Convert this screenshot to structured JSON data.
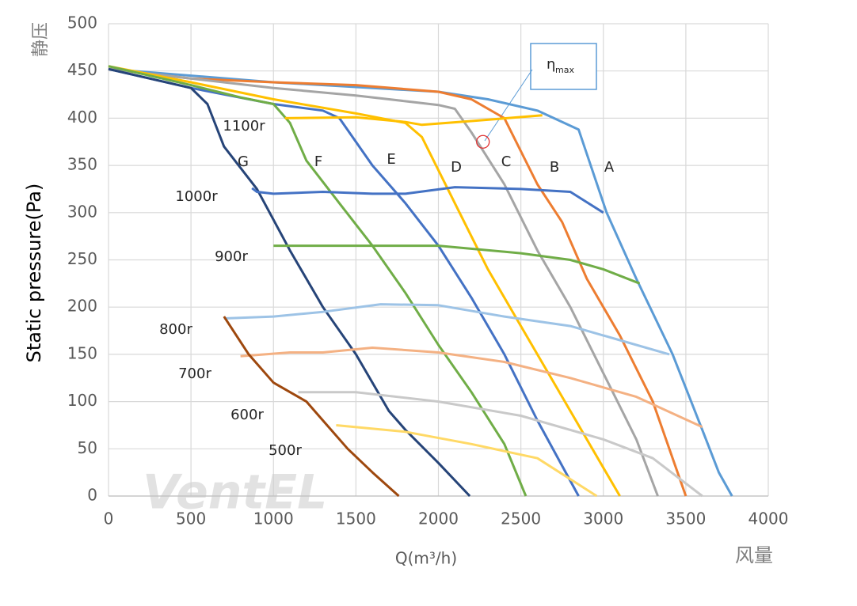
{
  "chart_data": {
    "type": "line",
    "y_label": "Static pressure(Pa)",
    "y_label_cn": "静压",
    "x_label": "Q(m³/h)",
    "x_label_cn": "风量",
    "watermark": "VentEL",
    "annotation_main": "η",
    "annotation_sub": "max",
    "eta_max_point": {
      "x": 2270,
      "y": 375
    },
    "xlim": [
      0,
      4000
    ],
    "ylim": [
      0,
      500
    ],
    "xticks": [
      0,
      500,
      1000,
      1500,
      2000,
      2500,
      3000,
      3500,
      4000
    ],
    "yticks": [
      0,
      50,
      100,
      150,
      200,
      250,
      300,
      350,
      400,
      450,
      500
    ],
    "grid": true,
    "series": [
      {
        "name": "A",
        "color": "#5b9bd5",
        "x": [
          0,
          1000,
          2000,
          2300,
          2600,
          2850,
          3020,
          3200,
          3420,
          3600,
          3700,
          3780
        ],
        "values": [
          452,
          438,
          428,
          420,
          408,
          388,
          300,
          230,
          150,
          70,
          25,
          0
        ]
      },
      {
        "name": "B",
        "color": "#ed7d31",
        "x": [
          0,
          500,
          1000,
          1500,
          2000,
          2200,
          2400,
          2600,
          2750,
          2900,
          3100,
          3300,
          3420,
          3500
        ],
        "values": [
          452,
          442,
          438,
          435,
          428,
          420,
          400,
          330,
          290,
          230,
          170,
          100,
          40,
          0
        ]
      },
      {
        "name": "C",
        "color": "#a5a5a5",
        "x": [
          0,
          1000,
          1500,
          2000,
          2100,
          2200,
          2400,
          2600,
          2800,
          3000,
          3200,
          3330
        ],
        "values": [
          452,
          432,
          424,
          414,
          410,
          385,
          330,
          260,
          200,
          130,
          60,
          0
        ]
      },
      {
        "name": "D",
        "color": "#ffc000",
        "x": [
          0,
          500,
          1000,
          1500,
          1800,
          1900,
          2100,
          2300,
          2500,
          2700,
          2900,
          3100
        ],
        "values": [
          455,
          438,
          420,
          405,
          395,
          380,
          310,
          240,
          180,
          120,
          60,
          0
        ]
      },
      {
        "name": "E",
        "color": "#4472c4",
        "x": [
          0,
          500,
          1000,
          1300,
          1400,
          1600,
          1800,
          2000,
          2200,
          2400,
          2600,
          2850
        ],
        "values": [
          452,
          432,
          415,
          408,
          400,
          350,
          310,
          265,
          210,
          150,
          80,
          0
        ]
      },
      {
        "name": "F",
        "color": "#70ad47",
        "x": [
          0,
          500,
          800,
          1000,
          1100,
          1200,
          1400,
          1600,
          1800,
          2000,
          2200,
          2400,
          2530
        ],
        "values": [
          455,
          435,
          422,
          415,
          395,
          355,
          310,
          265,
          215,
          160,
          110,
          55,
          0
        ]
      },
      {
        "name": "G",
        "color": "#264478",
        "x": [
          0,
          500,
          600,
          700,
          900,
          1100,
          1300,
          1500,
          1700,
          1800,
          2000,
          2190
        ],
        "values": [
          452,
          432,
          415,
          370,
          325,
          260,
          200,
          150,
          90,
          70,
          35,
          0
        ]
      },
      {
        "name": "1100r",
        "color": "#ffc000",
        "x": [
          1070,
          1500,
          1800,
          1900,
          2200,
          2630
        ],
        "values": [
          400,
          401,
          396,
          393,
          397,
          403
        ]
      },
      {
        "name": "1000r",
        "color": "#4472c4",
        "x": [
          870,
          900,
          1000,
          1300,
          1600,
          1800,
          2100,
          2500,
          2800,
          3000
        ],
        "values": [
          326,
          322,
          320,
          322,
          320,
          320,
          327,
          325,
          322,
          300
        ]
      },
      {
        "name": "900r",
        "color": "#70ad47",
        "x": [
          1000,
          1500,
          2000,
          2500,
          2800,
          3000,
          3220
        ],
        "values": [
          265,
          265,
          265,
          257,
          250,
          240,
          225
        ]
      },
      {
        "name": "800r",
        "color": "#9dc3e6",
        "x": [
          700,
          1000,
          1300,
          1650,
          2000,
          2400,
          2800,
          3100,
          3400
        ],
        "values": [
          188,
          190,
          195,
          203,
          202,
          190,
          180,
          165,
          150
        ]
      },
      {
        "name": "700r",
        "color": "#f4b183",
        "x": [
          800,
          1100,
          1300,
          1600,
          2000,
          2400,
          2800,
          3200,
          3600
        ],
        "values": [
          148,
          152,
          152,
          157,
          152,
          142,
          125,
          105,
          73
        ]
      },
      {
        "name": "600r",
        "color": "#c9c9c9",
        "x": [
          1150,
          1500,
          2000,
          2500,
          3000,
          3300,
          3600
        ],
        "values": [
          110,
          110,
          100,
          85,
          60,
          40,
          0
        ]
      },
      {
        "name": "500r",
        "color": "#ffd966",
        "x": [
          1380,
          1800,
          2200,
          2600,
          2960
        ],
        "values": [
          75,
          68,
          55,
          40,
          0
        ]
      },
      {
        "color": "#9e480e",
        "x": [
          700,
          850,
          1000,
          1200,
          1300,
          1450,
          1600,
          1760
        ],
        "values": [
          190,
          150,
          120,
          100,
          80,
          50,
          25,
          0
        ]
      }
    ]
  }
}
